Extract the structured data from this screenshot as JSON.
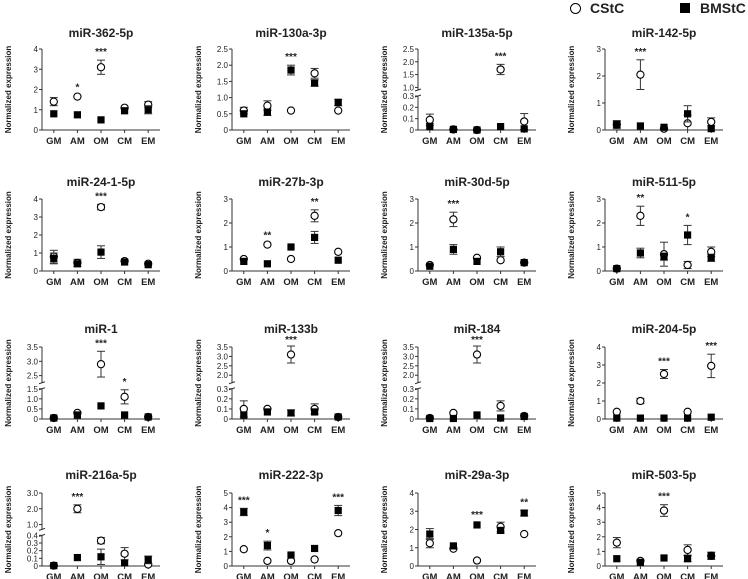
{
  "legend": [
    {
      "label": "CStC",
      "marker": "open-circle"
    },
    {
      "label": "BMStC",
      "marker": "filled-square"
    }
  ],
  "chart_data": [
    {
      "type": "scatter",
      "title": "miR-362-5p",
      "ylabel": "Normalized expression",
      "categories": [
        "GM",
        "AM",
        "OM",
        "CM",
        "EM"
      ],
      "ylim": [
        0,
        4
      ],
      "yticks": [
        0,
        1,
        2,
        3,
        4
      ],
      "series": [
        {
          "name": "CStC",
          "values": [
            1.4,
            1.65,
            3.1,
            1.1,
            1.25
          ],
          "err": [
            0.2,
            0.05,
            0.35,
            0.1,
            0.15
          ]
        },
        {
          "name": "BMStC",
          "values": [
            0.8,
            0.75,
            0.5,
            0.95,
            1.0
          ],
          "err": [
            0.1,
            0.05,
            0.05,
            0.1,
            0.2
          ]
        }
      ],
      "sig": [
        {
          "cat": "AM",
          "label": "*"
        },
        {
          "cat": "OM",
          "label": "***"
        }
      ]
    },
    {
      "type": "scatter",
      "title": "miR-130a-3p",
      "ylabel": "Normalized expression",
      "categories": [
        "GM",
        "AM",
        "OM",
        "CM",
        "EM"
      ],
      "ylim": [
        0,
        2.5
      ],
      "yticks": [
        0,
        0.5,
        1.0,
        1.5,
        2.0,
        2.5
      ],
      "series": [
        {
          "name": "CStC",
          "values": [
            0.6,
            0.75,
            0.6,
            1.75,
            0.6
          ],
          "err": [
            0.1,
            0.15,
            0.02,
            0.15,
            0.05
          ]
        },
        {
          "name": "BMStC",
          "values": [
            0.5,
            0.55,
            1.85,
            1.45,
            0.85
          ],
          "err": [
            0.05,
            0.1,
            0.15,
            0.1,
            0.1
          ]
        }
      ],
      "sig": [
        {
          "cat": "OM",
          "label": "***"
        }
      ]
    },
    {
      "type": "scatter",
      "title": "miR-135a-5p",
      "ylabel": "Normalized expression",
      "categories": [
        "GM",
        "AM",
        "OM",
        "CM",
        "EM"
      ],
      "ylim": [
        0,
        2.5
      ],
      "yticks": [
        0,
        0.1,
        0.2,
        0.3,
        1.0,
        1.5,
        2.0,
        2.5
      ],
      "break": [
        0.3,
        0.9
      ],
      "series": [
        {
          "name": "CStC",
          "values": [
            0.09,
            0.005,
            0.0,
            1.7,
            0.075
          ],
          "err": [
            0.05,
            0.005,
            0.002,
            0.2,
            0.07
          ]
        },
        {
          "name": "BMStC",
          "values": [
            0.03,
            0.005,
            0.0,
            0.03,
            0.01
          ],
          "err": [
            0.03,
            0.005,
            0.002,
            0.02,
            0.01
          ]
        }
      ],
      "sig": [
        {
          "cat": "CM",
          "label": "***"
        }
      ]
    },
    {
      "type": "scatter",
      "title": "miR-142-5p",
      "ylabel": "Normalized expression",
      "categories": [
        "GM",
        "AM",
        "OM",
        "CM",
        "EM"
      ],
      "ylim": [
        0,
        3
      ],
      "yticks": [
        0,
        1,
        2,
        3
      ],
      "series": [
        {
          "name": "CStC",
          "values": [
            0.2,
            2.05,
            0.05,
            0.25,
            0.3
          ],
          "err": [
            0.1,
            0.55,
            0.05,
            0.3,
            0.15
          ]
        },
        {
          "name": "BMStC",
          "values": [
            0.2,
            0.15,
            0.1,
            0.6,
            0.05
          ],
          "err": [
            0.15,
            0.05,
            0.05,
            0.3,
            0.05
          ]
        }
      ],
      "sig": [
        {
          "cat": "AM",
          "label": "***"
        }
      ]
    },
    {
      "type": "scatter",
      "title": "miR-24-1-5p",
      "ylabel": "Normalized expression",
      "categories": [
        "GM",
        "AM",
        "OM",
        "CM",
        "EM"
      ],
      "ylim": [
        0,
        4
      ],
      "yticks": [
        0,
        1.0,
        2.0,
        3.0,
        4.0
      ],
      "series": [
        {
          "name": "CStC",
          "values": [
            0.8,
            0.45,
            3.55,
            0.55,
            0.4
          ],
          "err": [
            0.35,
            0.2,
            0.15,
            0.1,
            0.1
          ]
        },
        {
          "name": "BMStC",
          "values": [
            0.7,
            0.4,
            1.05,
            0.5,
            0.35
          ],
          "err": [
            0.3,
            0.15,
            0.35,
            0.1,
            0.1
          ]
        }
      ],
      "sig": [
        {
          "cat": "OM",
          "label": "***"
        }
      ]
    },
    {
      "type": "scatter",
      "title": "miR-27b-3p",
      "ylabel": "Normalized expression",
      "categories": [
        "GM",
        "AM",
        "OM",
        "CM",
        "EM"
      ],
      "ylim": [
        0,
        3
      ],
      "yticks": [
        0,
        1.0,
        2.0,
        3.0
      ],
      "series": [
        {
          "name": "CStC",
          "values": [
            0.5,
            1.1,
            0.5,
            2.3,
            0.8
          ],
          "err": [
            0.1,
            0.05,
            0.03,
            0.25,
            0.1
          ]
        },
        {
          "name": "BMStC",
          "values": [
            0.4,
            0.3,
            1.0,
            1.4,
            0.45
          ],
          "err": [
            0.05,
            0.03,
            0.05,
            0.25,
            0.05
          ]
        }
      ],
      "sig": [
        {
          "cat": "AM",
          "label": "**"
        },
        {
          "cat": "CM",
          "label": "**"
        }
      ]
    },
    {
      "type": "scatter",
      "title": "miR-30d-5p",
      "ylabel": "Normalized expression",
      "categories": [
        "GM",
        "AM",
        "OM",
        "CM",
        "EM"
      ],
      "ylim": [
        0,
        3
      ],
      "yticks": [
        0,
        1.0,
        2.0,
        3.0
      ],
      "series": [
        {
          "name": "CStC",
          "values": [
            0.25,
            2.15,
            0.55,
            0.45,
            0.35
          ],
          "err": [
            0.03,
            0.3,
            0.1,
            0.1,
            0.03
          ]
        },
        {
          "name": "BMStC",
          "values": [
            0.2,
            0.9,
            0.4,
            0.8,
            0.35
          ],
          "err": [
            0.03,
            0.2,
            0.1,
            0.2,
            0.03
          ]
        }
      ],
      "sig": [
        {
          "cat": "AM",
          "label": "***"
        }
      ]
    },
    {
      "type": "scatter",
      "title": "miR-511-5p",
      "ylabel": "Normalized expression",
      "categories": [
        "GM",
        "AM",
        "OM",
        "CM",
        "EM"
      ],
      "ylim": [
        0,
        3
      ],
      "yticks": [
        0,
        1.0,
        2.0,
        3.0
      ],
      "series": [
        {
          "name": "CStC",
          "values": [
            0.1,
            2.3,
            0.7,
            0.25,
            0.8
          ],
          "err": [
            0.03,
            0.4,
            0.5,
            0.15,
            0.2
          ]
        },
        {
          "name": "BMStC",
          "values": [
            0.1,
            0.75,
            0.6,
            1.5,
            0.55
          ],
          "err": [
            0.03,
            0.2,
            0.15,
            0.4,
            0.15
          ]
        }
      ],
      "sig": [
        {
          "cat": "AM",
          "label": "**"
        },
        {
          "cat": "CM",
          "label": "*"
        }
      ]
    },
    {
      "type": "scatter",
      "title": "miR-1",
      "ylabel": "Normalized expression",
      "categories": [
        "GM",
        "AM",
        "OM",
        "CM",
        "EM"
      ],
      "ylim": [
        0,
        3.5
      ],
      "yticks": [
        0,
        0.5,
        1.0,
        1.5,
        2.5,
        3.0,
        3.5
      ],
      "break": [
        1.5,
        2.25
      ],
      "series": [
        {
          "name": "CStC",
          "values": [
            0.05,
            0.3,
            2.9,
            1.1,
            0.1
          ],
          "err": [
            0.02,
            0.1,
            0.45,
            0.35,
            0.02
          ]
        },
        {
          "name": "BMStC",
          "values": [
            0.05,
            0.2,
            0.65,
            0.2,
            0.1
          ],
          "err": [
            0.02,
            0.1,
            0.1,
            0.05,
            0.02
          ]
        }
      ],
      "sig": [
        {
          "cat": "OM",
          "label": "***"
        },
        {
          "cat": "CM",
          "label": "*"
        }
      ]
    },
    {
      "type": "scatter",
      "title": "miR-133b",
      "ylabel": "Normalized expression",
      "categories": [
        "GM",
        "AM",
        "OM",
        "CM",
        "EM"
      ],
      "ylim": [
        0,
        3.5
      ],
      "yticks": [
        0,
        0.1,
        0.2,
        0.3,
        2.0,
        2.5,
        3.0,
        3.5
      ],
      "break": [
        0.3,
        1.6
      ],
      "series": [
        {
          "name": "CStC",
          "values": [
            0.1,
            0.1,
            3.1,
            0.1,
            0.02
          ],
          "err": [
            0.08,
            0.01,
            0.45,
            0.05,
            0.01
          ]
        },
        {
          "name": "BMStC",
          "values": [
            0.04,
            0.07,
            0.06,
            0.07,
            0.02
          ],
          "err": [
            0.02,
            0.02,
            0.03,
            0.02,
            0.01
          ]
        }
      ],
      "sig": [
        {
          "cat": "OM",
          "label": "***"
        }
      ]
    },
    {
      "type": "scatter",
      "title": "miR-184",
      "ylabel": "Normalized expression",
      "categories": [
        "GM",
        "AM",
        "OM",
        "CM",
        "EM"
      ],
      "ylim": [
        0,
        3.5
      ],
      "yticks": [
        0,
        0.1,
        0.2,
        0.3,
        2.0,
        2.5,
        3.0,
        3.5
      ],
      "break": [
        0.3,
        1.6
      ],
      "series": [
        {
          "name": "CStC",
          "values": [
            0.01,
            0.06,
            3.1,
            0.13,
            0.03
          ],
          "err": [
            0.01,
            0.01,
            0.45,
            0.05,
            0.01
          ]
        },
        {
          "name": "BMStC",
          "values": [
            0.005,
            0.005,
            0.04,
            0.01,
            0.025
          ],
          "err": [
            0.003,
            0.003,
            0.01,
            0.01,
            0.01
          ]
        }
      ],
      "sig": [
        {
          "cat": "OM",
          "label": "***"
        }
      ]
    },
    {
      "type": "scatter",
      "title": "miR-204-5p",
      "ylabel": "Normalized expression",
      "categories": [
        "GM",
        "AM",
        "OM",
        "CM",
        "EM"
      ],
      "ylim": [
        0,
        4
      ],
      "yticks": [
        0,
        1.0,
        2.0,
        3.0,
        4.0
      ],
      "series": [
        {
          "name": "CStC",
          "values": [
            0.4,
            1.0,
            2.5,
            0.4,
            2.95
          ],
          "err": [
            0.1,
            0.15,
            0.25,
            0.05,
            0.65
          ]
        },
        {
          "name": "BMStC",
          "values": [
            0.05,
            0.05,
            0.05,
            0.05,
            0.1
          ],
          "err": [
            0.02,
            0.02,
            0.02,
            0.02,
            0.02
          ]
        }
      ],
      "sig": [
        {
          "cat": "OM",
          "label": "***"
        },
        {
          "cat": "EM",
          "label": "***"
        }
      ]
    },
    {
      "type": "scatter",
      "title": "miR-216a-5p",
      "ylabel": "Normalized expression",
      "categories": [
        "GM",
        "AM",
        "OM",
        "CM",
        "EM"
      ],
      "ylim": [
        0,
        3
      ],
      "yticks": [
        0,
        0.1,
        0.2,
        0.3,
        0.4,
        1.0,
        2.0,
        3.0
      ],
      "break": [
        0.4,
        0.7
      ],
      "series": [
        {
          "name": "CStC",
          "values": [
            0.005,
            2.0,
            0.33,
            0.16,
            0.02
          ],
          "err": [
            0.002,
            0.25,
            0.04,
            0.08,
            0.02
          ]
        },
        {
          "name": "BMStC",
          "values": [
            0.005,
            0.11,
            0.12,
            0.04,
            0.08
          ],
          "err": [
            0.002,
            0.03,
            0.1,
            0.03,
            0.05
          ]
        }
      ],
      "sig": [
        {
          "cat": "AM",
          "label": "***"
        }
      ]
    },
    {
      "type": "scatter",
      "title": "miR-222-3p",
      "ylabel": "Normalized expression",
      "categories": [
        "GM",
        "AM",
        "OM",
        "CM",
        "EM"
      ],
      "ylim": [
        0,
        5
      ],
      "yticks": [
        0,
        1.0,
        2.0,
        3.0,
        4.0,
        5.0
      ],
      "series": [
        {
          "name": "CStC",
          "values": [
            1.15,
            0.35,
            0.35,
            0.45,
            2.25
          ],
          "err": [
            0.05,
            0.05,
            0.05,
            0.15,
            0.05
          ]
        },
        {
          "name": "BMStC",
          "values": [
            3.7,
            1.4,
            0.75,
            1.2,
            3.8
          ],
          "err": [
            0.25,
            0.3,
            0.05,
            0.05,
            0.35
          ]
        }
      ],
      "sig": [
        {
          "cat": "GM",
          "label": "***"
        },
        {
          "cat": "AM",
          "label": "*"
        },
        {
          "cat": "EM",
          "label": "***"
        }
      ]
    },
    {
      "type": "scatter",
      "title": "miR-29a-3p",
      "ylabel": "Normalized expression",
      "categories": [
        "GM",
        "AM",
        "OM",
        "CM",
        "EM"
      ],
      "ylim": [
        0,
        4
      ],
      "yticks": [
        0,
        1.0,
        2.0,
        3.0,
        4.0
      ],
      "series": [
        {
          "name": "CStC",
          "values": [
            1.25,
            0.95,
            0.3,
            2.15,
            1.75
          ],
          "err": [
            0.25,
            0.05,
            0.03,
            0.25,
            0.05
          ]
        },
        {
          "name": "BMStC",
          "values": [
            1.75,
            1.1,
            2.25,
            1.95,
            2.9
          ],
          "err": [
            0.3,
            0.05,
            0.1,
            0.15,
            0.15
          ]
        }
      ],
      "sig": [
        {
          "cat": "OM",
          "label": "***"
        },
        {
          "cat": "EM",
          "label": "**"
        }
      ]
    },
    {
      "type": "scatter",
      "title": "miR-503-5p",
      "ylabel": "Normalized expression",
      "categories": [
        "GM",
        "AM",
        "OM",
        "CM",
        "EM"
      ],
      "ylim": [
        0,
        5
      ],
      "yticks": [
        0,
        1.0,
        2.0,
        3.0,
        4.0,
        5.0
      ],
      "series": [
        {
          "name": "CStC",
          "values": [
            1.6,
            0.35,
            3.8,
            1.1,
            0.7
          ],
          "err": [
            0.35,
            0.15,
            0.4,
            0.35,
            0.25
          ]
        },
        {
          "name": "BMStC",
          "values": [
            0.5,
            0.25,
            0.55,
            0.5,
            0.7
          ],
          "err": [
            0.1,
            0.1,
            0.05,
            0.2,
            0.15
          ]
        }
      ],
      "sig": [
        {
          "cat": "OM",
          "label": "***"
        }
      ]
    }
  ]
}
